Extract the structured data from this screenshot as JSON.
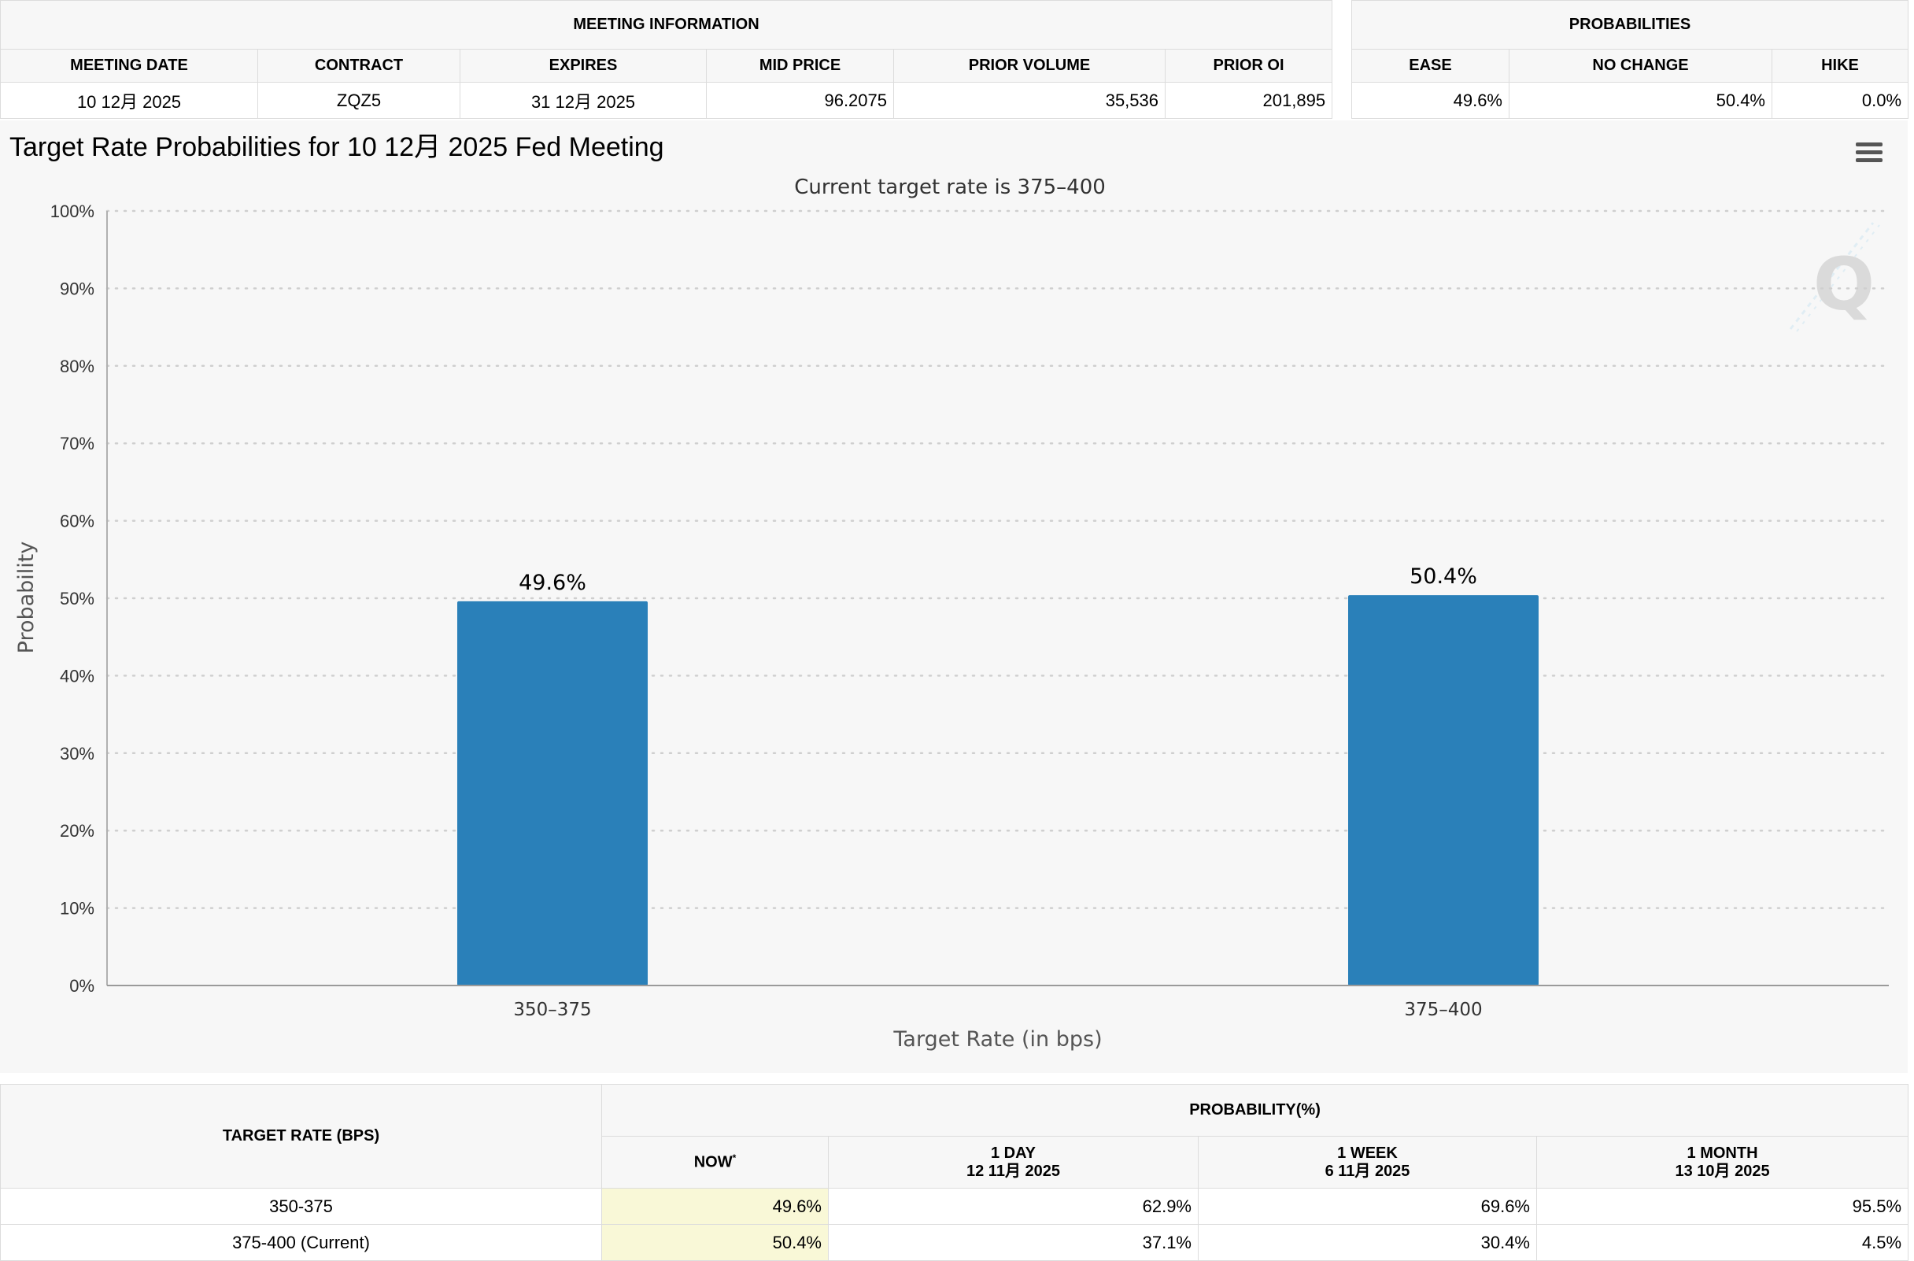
{
  "meeting_info": {
    "title": "MEETING INFORMATION",
    "headers": [
      "MEETING DATE",
      "CONTRACT",
      "EXPIRES",
      "MID PRICE",
      "PRIOR VOLUME",
      "PRIOR OI"
    ],
    "values": [
      "10 12月 2025",
      "ZQZ5",
      "31 12月 2025",
      "96.2075",
      "35,536",
      "201,895"
    ]
  },
  "probabilities": {
    "title": "PROBABILITIES",
    "headers": [
      "EASE",
      "NO CHANGE",
      "HIKE"
    ],
    "values": [
      "49.6%",
      "50.4%",
      "0.0%"
    ]
  },
  "chart": {
    "menu_icon": "hamburger-menu-icon",
    "watermark_icon": "q-logo-icon"
  },
  "chart_data": {
    "type": "bar",
    "title": "Target Rate Probabilities for 10 12月 2025 Fed Meeting",
    "subtitle": "Current target rate is 375–400",
    "categories": [
      "350–375",
      "375–400"
    ],
    "values": [
      49.6,
      50.4
    ],
    "data_labels": [
      "49.6%",
      "50.4%"
    ],
    "xlabel": "Target Rate (in bps)",
    "ylabel": "Probability",
    "ylim": [
      0,
      100
    ],
    "yticks": [
      "0%",
      "10%",
      "20%",
      "30%",
      "40%",
      "50%",
      "60%",
      "70%",
      "80%",
      "90%",
      "100%"
    ],
    "grid": true,
    "bar_color": "#2a80b9"
  },
  "bottom_table": {
    "col_target": "TARGET RATE (BPS)",
    "col_prob": "PROBABILITY(%)",
    "now_label": "NOW",
    "now_mark": "*",
    "periods": [
      {
        "label": "1 DAY",
        "date": "12 11月 2025"
      },
      {
        "label": "1 WEEK",
        "date": "6 11月 2025"
      },
      {
        "label": "1 MONTH",
        "date": "13 10月 2025"
      }
    ],
    "rows": [
      {
        "rate": "350-375",
        "now": "49.6%",
        "day": "62.9%",
        "week": "69.6%",
        "month": "95.5%"
      },
      {
        "rate": "375-400 (Current)",
        "now": "50.4%",
        "day": "37.1%",
        "week": "30.4%",
        "month": "4.5%"
      }
    ]
  }
}
